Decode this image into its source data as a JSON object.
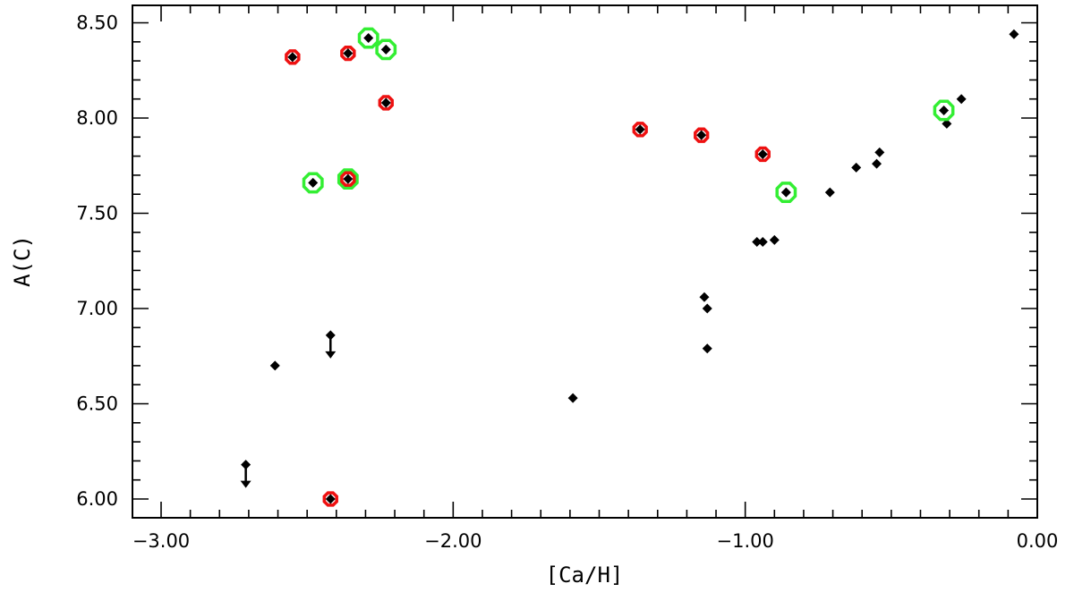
{
  "chart_data": {
    "type": "scatter",
    "title": "",
    "xlabel": "[Ca/H]",
    "ylabel": "A(C)",
    "xlim": [
      -3.1,
      0.0
    ],
    "ylim": [
      5.91,
      8.65
    ],
    "grid": false,
    "legend": "none",
    "x_ticks": [
      -3.0,
      -2.0,
      -1.0,
      0.0
    ],
    "x_tick_labels": [
      "−3.00",
      "−2.00",
      "−1.00",
      "0.00"
    ],
    "y_ticks": [
      6.0,
      6.5,
      7.0,
      7.5,
      8.0,
      8.5
    ],
    "y_tick_labels": [
      "6.00",
      "6.50",
      "7.00",
      "7.50",
      "8.00",
      "8.50"
    ],
    "x_minor_step": 0.1,
    "y_minor_step": 0.1,
    "colors": {
      "point": "#000000",
      "red_marker": "#ee1111",
      "green_marker": "#33ee33"
    },
    "points": [
      {
        "x": -2.55,
        "y": 8.32,
        "marker": "red"
      },
      {
        "x": -2.36,
        "y": 8.34,
        "marker": "red"
      },
      {
        "x": -2.29,
        "y": 8.42,
        "marker": "green"
      },
      {
        "x": -2.23,
        "y": 8.36,
        "marker": "green"
      },
      {
        "x": -2.23,
        "y": 8.08,
        "marker": "red"
      },
      {
        "x": -2.48,
        "y": 7.66,
        "marker": "green"
      },
      {
        "x": -2.36,
        "y": 7.68,
        "marker": "both"
      },
      {
        "x": -2.42,
        "y": 6.0,
        "marker": "red"
      },
      {
        "x": -2.42,
        "y": 6.86,
        "upper_limit": true
      },
      {
        "x": -2.61,
        "y": 6.7
      },
      {
        "x": -2.71,
        "y": 6.18,
        "upper_limit": true
      },
      {
        "x": -1.59,
        "y": 6.53
      },
      {
        "x": -1.36,
        "y": 7.94,
        "marker": "red"
      },
      {
        "x": -1.15,
        "y": 7.91,
        "marker": "red"
      },
      {
        "x": -1.14,
        "y": 7.06
      },
      {
        "x": -1.13,
        "y": 7.0
      },
      {
        "x": -1.13,
        "y": 6.79
      },
      {
        "x": -0.96,
        "y": 7.35
      },
      {
        "x": -0.94,
        "y": 7.35
      },
      {
        "x": -0.9,
        "y": 7.36
      },
      {
        "x": -0.94,
        "y": 7.81,
        "marker": "red"
      },
      {
        "x": -0.86,
        "y": 7.61,
        "marker": "green"
      },
      {
        "x": -0.71,
        "y": 7.61
      },
      {
        "x": -0.62,
        "y": 7.74
      },
      {
        "x": -0.55,
        "y": 7.76
      },
      {
        "x": -0.54,
        "y": 7.82
      },
      {
        "x": -0.31,
        "y": 7.97
      },
      {
        "x": -0.32,
        "y": 8.04,
        "marker": "green"
      },
      {
        "x": -0.26,
        "y": 8.1
      },
      {
        "x": -0.08,
        "y": 8.44
      }
    ]
  }
}
